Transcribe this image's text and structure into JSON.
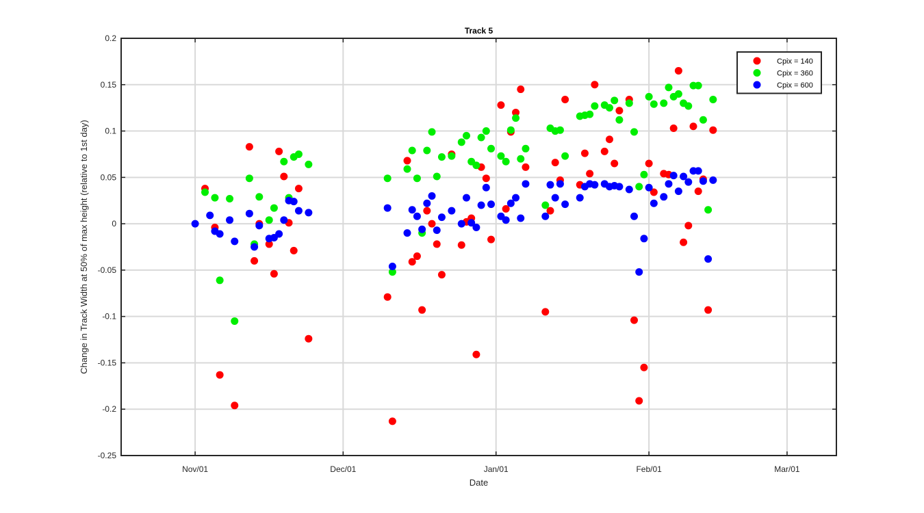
{
  "chart_data": {
    "type": "scatter",
    "title": "Track 5",
    "xlabel": "Date",
    "ylabel": "Change in Track Width at 50% of max height (relative to 1st day)",
    "xlim": [
      "2016-10-17",
      "2017-03-11"
    ],
    "ylim": [
      -0.25,
      0.2
    ],
    "grid": true,
    "legend_position": "top-right",
    "x_ticks": [
      {
        "date": "2016-11-01",
        "label": "Nov/01"
      },
      {
        "date": "2016-12-01",
        "label": "Dec/01"
      },
      {
        "date": "2017-01-01",
        "label": "Jan/01"
      },
      {
        "date": "2017-02-01",
        "label": "Feb/01"
      },
      {
        "date": "2017-03-01",
        "label": "Mar/01"
      }
    ],
    "y_ticks": [
      {
        "value": 0.2,
        "label": "0.2"
      },
      {
        "value": 0.15,
        "label": "0.15"
      },
      {
        "value": 0.1,
        "label": "0.1"
      },
      {
        "value": 0.05,
        "label": "0.05"
      },
      {
        "value": 0,
        "label": "0"
      },
      {
        "value": -0.05,
        "label": "-0.05"
      },
      {
        "value": -0.1,
        "label": "-0.1"
      },
      {
        "value": -0.15,
        "label": "-0.15"
      },
      {
        "value": -0.2,
        "label": "-0.2"
      },
      {
        "value": -0.25,
        "label": "-0.25"
      }
    ],
    "series": [
      {
        "name": "Cpix = 140",
        "color": "#ff0000",
        "points": [
          [
            "2016-11-03",
            0.038
          ],
          [
            "2016-11-05",
            -0.004
          ],
          [
            "2016-11-06",
            -0.163
          ],
          [
            "2016-11-09",
            -0.196
          ],
          [
            "2016-11-12",
            0.083
          ],
          [
            "2016-11-13",
            -0.04
          ],
          [
            "2016-11-14",
            0.0
          ],
          [
            "2016-11-16",
            -0.022
          ],
          [
            "2016-11-17",
            -0.054
          ],
          [
            "2016-11-18",
            0.078
          ],
          [
            "2016-11-19",
            0.051
          ],
          [
            "2016-11-20",
            0.001
          ],
          [
            "2016-11-21",
            -0.029
          ],
          [
            "2016-11-22",
            0.038
          ],
          [
            "2016-11-24",
            -0.124
          ],
          [
            "2016-12-10",
            -0.079
          ],
          [
            "2016-12-11",
            -0.213
          ],
          [
            "2016-12-14",
            0.068
          ],
          [
            "2016-12-15",
            -0.041
          ],
          [
            "2016-12-16",
            -0.035
          ],
          [
            "2016-12-17",
            -0.093
          ],
          [
            "2016-12-18",
            0.014
          ],
          [
            "2016-12-19",
            0.0
          ],
          [
            "2016-12-20",
            -0.022
          ],
          [
            "2016-12-21",
            -0.055
          ],
          [
            "2016-12-23",
            0.075
          ],
          [
            "2016-12-25",
            -0.023
          ],
          [
            "2016-12-26",
            0.002
          ],
          [
            "2016-12-27",
            0.006
          ],
          [
            "2016-12-28",
            -0.141
          ],
          [
            "2016-12-29",
            0.061
          ],
          [
            "2016-12-30",
            0.049
          ],
          [
            "2016-12-31",
            -0.017
          ],
          [
            "2017-01-02",
            0.128
          ],
          [
            "2017-01-03",
            0.016
          ],
          [
            "2017-01-04",
            0.099
          ],
          [
            "2017-01-05",
            0.12
          ],
          [
            "2017-01-06",
            0.145
          ],
          [
            "2017-01-07",
            0.061
          ],
          [
            "2017-01-11",
            -0.095
          ],
          [
            "2017-01-12",
            0.014
          ],
          [
            "2017-01-13",
            0.066
          ],
          [
            "2017-01-14",
            0.047
          ],
          [
            "2017-01-15",
            0.134
          ],
          [
            "2017-01-18",
            0.042
          ],
          [
            "2017-01-19",
            0.076
          ],
          [
            "2017-01-20",
            0.054
          ],
          [
            "2017-01-21",
            0.15
          ],
          [
            "2017-01-23",
            0.078
          ],
          [
            "2017-01-24",
            0.091
          ],
          [
            "2017-01-25",
            0.065
          ],
          [
            "2017-01-26",
            0.122
          ],
          [
            "2017-01-28",
            0.134
          ],
          [
            "2017-01-29",
            -0.104
          ],
          [
            "2017-01-30",
            -0.191
          ],
          [
            "2017-01-31",
            -0.155
          ],
          [
            "2017-02-01",
            0.065
          ],
          [
            "2017-02-02",
            0.034
          ],
          [
            "2017-02-04",
            0.054
          ],
          [
            "2017-02-05",
            0.053
          ],
          [
            "2017-02-06",
            0.103
          ],
          [
            "2017-02-07",
            0.165
          ],
          [
            "2017-02-08",
            -0.02
          ],
          [
            "2017-02-09",
            -0.002
          ],
          [
            "2017-02-10",
            0.105
          ],
          [
            "2017-02-11",
            0.035
          ],
          [
            "2017-02-12",
            0.048
          ],
          [
            "2017-02-13",
            -0.093
          ],
          [
            "2017-02-14",
            0.101
          ]
        ]
      },
      {
        "name": "Cpix = 360",
        "color": "#00ee00",
        "points": [
          [
            "2016-11-03",
            0.034
          ],
          [
            "2016-11-05",
            0.028
          ],
          [
            "2016-11-06",
            -0.061
          ],
          [
            "2016-11-08",
            0.027
          ],
          [
            "2016-11-09",
            -0.105
          ],
          [
            "2016-11-12",
            0.049
          ],
          [
            "2016-11-13",
            -0.022
          ],
          [
            "2016-11-14",
            0.029
          ],
          [
            "2016-11-16",
            0.004
          ],
          [
            "2016-11-17",
            0.017
          ],
          [
            "2016-11-19",
            0.067
          ],
          [
            "2016-11-20",
            0.028
          ],
          [
            "2016-11-21",
            0.072
          ],
          [
            "2016-11-22",
            0.075
          ],
          [
            "2016-11-24",
            0.064
          ],
          [
            "2016-12-10",
            0.049
          ],
          [
            "2016-12-11",
            -0.052
          ],
          [
            "2016-12-14",
            0.059
          ],
          [
            "2016-12-15",
            0.079
          ],
          [
            "2016-12-16",
            0.049
          ],
          [
            "2016-12-17",
            -0.01
          ],
          [
            "2016-12-18",
            0.079
          ],
          [
            "2016-12-19",
            0.099
          ],
          [
            "2016-12-20",
            0.051
          ],
          [
            "2016-12-21",
            0.072
          ],
          [
            "2016-12-23",
            0.073
          ],
          [
            "2016-12-25",
            0.088
          ],
          [
            "2016-12-26",
            0.095
          ],
          [
            "2016-12-27",
            0.067
          ],
          [
            "2016-12-28",
            0.063
          ],
          [
            "2016-12-29",
            0.093
          ],
          [
            "2016-12-30",
            0.1
          ],
          [
            "2016-12-31",
            0.081
          ],
          [
            "2017-01-02",
            0.073
          ],
          [
            "2017-01-03",
            0.067
          ],
          [
            "2017-01-04",
            0.101
          ],
          [
            "2017-01-05",
            0.114
          ],
          [
            "2017-01-06",
            0.07
          ],
          [
            "2017-01-07",
            0.081
          ],
          [
            "2017-01-11",
            0.02
          ],
          [
            "2017-01-12",
            0.103
          ],
          [
            "2017-01-13",
            0.1
          ],
          [
            "2017-01-14",
            0.101
          ],
          [
            "2017-01-15",
            0.073
          ],
          [
            "2017-01-18",
            0.116
          ],
          [
            "2017-01-19",
            0.117
          ],
          [
            "2017-01-20",
            0.118
          ],
          [
            "2017-01-21",
            0.127
          ],
          [
            "2017-01-23",
            0.128
          ],
          [
            "2017-01-24",
            0.125
          ],
          [
            "2017-01-25",
            0.133
          ],
          [
            "2017-01-26",
            0.112
          ],
          [
            "2017-01-28",
            0.13
          ],
          [
            "2017-01-29",
            0.099
          ],
          [
            "2017-01-30",
            0.04
          ],
          [
            "2017-01-31",
            0.053
          ],
          [
            "2017-02-01",
            0.137
          ],
          [
            "2017-02-02",
            0.129
          ],
          [
            "2017-02-04",
            0.13
          ],
          [
            "2017-02-05",
            0.147
          ],
          [
            "2017-02-06",
            0.137
          ],
          [
            "2017-02-07",
            0.14
          ],
          [
            "2017-02-08",
            0.13
          ],
          [
            "2017-02-09",
            0.127
          ],
          [
            "2017-02-10",
            0.149
          ],
          [
            "2017-02-11",
            0.149
          ],
          [
            "2017-02-12",
            0.112
          ],
          [
            "2017-02-13",
            0.015
          ],
          [
            "2017-02-14",
            0.134
          ]
        ]
      },
      {
        "name": "Cpix = 600",
        "color": "#0000ff",
        "points": [
          [
            "2016-11-01",
            0.0
          ],
          [
            "2016-11-04",
            0.009
          ],
          [
            "2016-11-05",
            -0.008
          ],
          [
            "2016-11-06",
            -0.011
          ],
          [
            "2016-11-08",
            0.004
          ],
          [
            "2016-11-09",
            -0.019
          ],
          [
            "2016-11-12",
            0.011
          ],
          [
            "2016-11-13",
            -0.025
          ],
          [
            "2016-11-14",
            -0.002
          ],
          [
            "2016-11-16",
            -0.016
          ],
          [
            "2016-11-17",
            -0.015
          ],
          [
            "2016-11-18",
            -0.011
          ],
          [
            "2016-11-19",
            0.004
          ],
          [
            "2016-11-20",
            0.025
          ],
          [
            "2016-11-21",
            0.024
          ],
          [
            "2016-11-22",
            0.014
          ],
          [
            "2016-11-24",
            0.012
          ],
          [
            "2016-12-10",
            0.017
          ],
          [
            "2016-12-11",
            -0.046
          ],
          [
            "2016-12-14",
            -0.01
          ],
          [
            "2016-12-15",
            0.015
          ],
          [
            "2016-12-16",
            0.008
          ],
          [
            "2016-12-17",
            -0.006
          ],
          [
            "2016-12-18",
            0.022
          ],
          [
            "2016-12-19",
            0.03
          ],
          [
            "2016-12-20",
            -0.007
          ],
          [
            "2016-12-21",
            0.007
          ],
          [
            "2016-12-23",
            0.014
          ],
          [
            "2016-12-25",
            0.0
          ],
          [
            "2016-12-26",
            0.028
          ],
          [
            "2016-12-27",
            0.001
          ],
          [
            "2016-12-28",
            -0.004
          ],
          [
            "2016-12-29",
            0.02
          ],
          [
            "2016-12-30",
            0.039
          ],
          [
            "2016-12-31",
            0.021
          ],
          [
            "2017-01-02",
            0.008
          ],
          [
            "2017-01-03",
            0.004
          ],
          [
            "2017-01-04",
            0.022
          ],
          [
            "2017-01-05",
            0.028
          ],
          [
            "2017-01-06",
            0.006
          ],
          [
            "2017-01-07",
            0.043
          ],
          [
            "2017-01-11",
            0.008
          ],
          [
            "2017-01-12",
            0.042
          ],
          [
            "2017-01-13",
            0.028
          ],
          [
            "2017-01-14",
            0.043
          ],
          [
            "2017-01-15",
            0.021
          ],
          [
            "2017-01-18",
            0.028
          ],
          [
            "2017-01-19",
            0.04
          ],
          [
            "2017-01-20",
            0.043
          ],
          [
            "2017-01-21",
            0.042
          ],
          [
            "2017-01-23",
            0.043
          ],
          [
            "2017-01-24",
            0.04
          ],
          [
            "2017-01-25",
            0.041
          ],
          [
            "2017-01-26",
            0.04
          ],
          [
            "2017-01-28",
            0.037
          ],
          [
            "2017-01-29",
            0.008
          ],
          [
            "2017-01-30",
            -0.052
          ],
          [
            "2017-01-31",
            -0.016
          ],
          [
            "2017-02-01",
            0.039
          ],
          [
            "2017-02-02",
            0.022
          ],
          [
            "2017-02-04",
            0.029
          ],
          [
            "2017-02-05",
            0.043
          ],
          [
            "2017-02-06",
            0.052
          ],
          [
            "2017-02-07",
            0.035
          ],
          [
            "2017-02-08",
            0.051
          ],
          [
            "2017-02-09",
            0.045
          ],
          [
            "2017-02-10",
            0.057
          ],
          [
            "2017-02-11",
            0.057
          ],
          [
            "2017-02-12",
            0.046
          ],
          [
            "2017-02-13",
            -0.038
          ],
          [
            "2017-02-14",
            0.047
          ]
        ]
      }
    ]
  }
}
